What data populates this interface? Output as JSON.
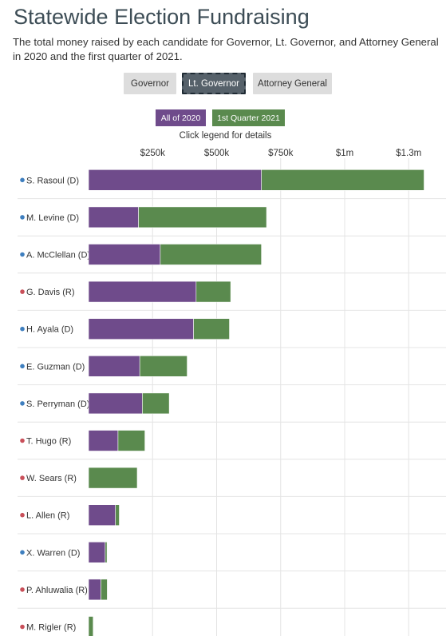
{
  "header": {
    "title": "Statewide Election Fundraising",
    "subtitle": "The total money raised by each candidate for Governor, Lt. Governor, and Attorney General in 2020 and the first quarter of 2021."
  },
  "tabs": [
    {
      "label": "Governor",
      "active": false
    },
    {
      "label": "Lt. Governor",
      "active": true
    },
    {
      "label": "Attorney General",
      "active": false
    }
  ],
  "legend": {
    "items": [
      {
        "label": "All of 2020",
        "color": "#6f4b8b"
      },
      {
        "label": "1st Quarter 2021",
        "color": "#5a8a4e"
      }
    ],
    "hint": "Click legend for details"
  },
  "colors": {
    "democrat": "#3f7fbf",
    "republican": "#c9505a",
    "grid": "#e4e4e4"
  },
  "chart_data": {
    "type": "bar",
    "orientation": "horizontal",
    "stacked": true,
    "categories": [
      "S. Rasoul (D)",
      "M. Levine (D)",
      "A. McClellan (D)",
      "G. Davis (R)",
      "H. Ayala (D)",
      "E. Guzman (D)",
      "S. Perryman (D)",
      "T. Hugo (R)",
      "W. Sears (R)",
      "L. Allen (R)",
      "X. Warren (D)",
      "P. Ahluwalia (R)",
      "M. Rigler (R)"
    ],
    "party": [
      "D",
      "D",
      "D",
      "R",
      "D",
      "D",
      "D",
      "R",
      "R",
      "R",
      "D",
      "R",
      "R"
    ],
    "series": [
      {
        "name": "All of 2020",
        "values": [
          675000,
          195000,
          280000,
          420000,
          410000,
          200000,
          210000,
          115000,
          0,
          105000,
          65000,
          48000,
          0
        ]
      },
      {
        "name": "1st Quarter 2021",
        "values": [
          635000,
          500000,
          395000,
          135000,
          140000,
          185000,
          105000,
          105000,
          190000,
          15000,
          7000,
          25000,
          18000
        ]
      }
    ],
    "x_ticks": [
      {
        "value": 250000,
        "label": "$250k"
      },
      {
        "value": 500000,
        "label": "$500k"
      },
      {
        "value": 750000,
        "label": "$750k"
      },
      {
        "value": 1000000,
        "label": "$1m"
      },
      {
        "value": 1250000,
        "label": "$1.3m"
      }
    ],
    "xlim": [
      0,
      1310000
    ],
    "grid": true
  }
}
